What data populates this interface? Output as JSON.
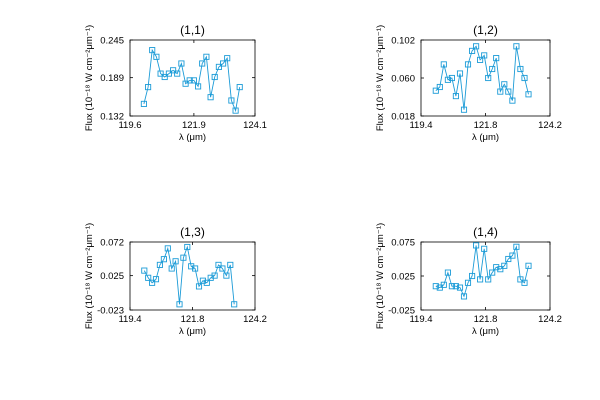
{
  "colors": {
    "series": "#1b9bd7",
    "axis": "#000000",
    "background": "#ffffff"
  },
  "chart_data": [
    {
      "type": "line",
      "title": "(1,1)",
      "xlabel": "λ (μm)",
      "ylabel": "Flux (10⁻¹⁸ W cm⁻²μm⁻¹)",
      "xlim": [
        119.6,
        124.1
      ],
      "ylim": [
        0.132,
        0.245
      ],
      "xticks": [
        "119.6",
        "121.9",
        "124.1"
      ],
      "yticks": [
        "0.132",
        "0.189",
        "0.245"
      ],
      "series": [
        {
          "x": [
            120.1,
            120.25,
            120.4,
            120.55,
            120.7,
            120.85,
            121.0,
            121.15,
            121.3,
            121.45,
            121.6,
            121.75,
            121.9,
            122.05,
            122.2,
            122.35,
            122.5,
            122.65,
            122.8,
            122.95,
            123.1,
            123.25,
            123.4,
            123.55
          ],
          "y": [
            0.15,
            0.175,
            0.23,
            0.22,
            0.195,
            0.19,
            0.195,
            0.2,
            0.195,
            0.21,
            0.18,
            0.185,
            0.185,
            0.176,
            0.21,
            0.22,
            0.16,
            0.19,
            0.205,
            0.21,
            0.218,
            0.155,
            0.14,
            0.175
          ]
        }
      ]
    },
    {
      "type": "line",
      "title": "(1,2)",
      "xlabel": "λ (μm)",
      "ylabel": "Flux (10⁻¹⁸ W cm⁻²μm⁻¹)",
      "xlim": [
        119.4,
        124.2
      ],
      "ylim": [
        0.018,
        0.102
      ],
      "xticks": [
        "119.4",
        "121.8",
        "124.2"
      ],
      "yticks": [
        "0.018",
        "0.060",
        "0.102"
      ],
      "series": [
        {
          "x": [
            119.95,
            120.1,
            120.25,
            120.4,
            120.55,
            120.7,
            120.85,
            121.0,
            121.15,
            121.3,
            121.45,
            121.6,
            121.75,
            121.9,
            122.05,
            122.2,
            122.35,
            122.5,
            122.65,
            122.8,
            122.95,
            123.1,
            123.25,
            123.4
          ],
          "y": [
            0.046,
            0.05,
            0.075,
            0.058,
            0.06,
            0.04,
            0.065,
            0.025,
            0.075,
            0.09,
            0.095,
            0.08,
            0.085,
            0.06,
            0.07,
            0.082,
            0.045,
            0.053,
            0.045,
            0.035,
            0.095,
            0.07,
            0.06,
            0.042
          ]
        }
      ]
    },
    {
      "type": "line",
      "title": "(1,3)",
      "xlabel": "λ (μm)",
      "ylabel": "Flux (10⁻¹⁸ W cm⁻²μm⁻¹)",
      "xlim": [
        119.4,
        124.2
      ],
      "ylim": [
        -0.023,
        0.072
      ],
      "xticks": [
        "119.4",
        "121.8",
        "124.2"
      ],
      "yticks": [
        "-0.023",
        "0.025",
        "0.072"
      ],
      "series": [
        {
          "x": [
            119.95,
            120.1,
            120.25,
            120.4,
            120.55,
            120.7,
            120.85,
            121.0,
            121.15,
            121.3,
            121.45,
            121.6,
            121.75,
            121.9,
            122.05,
            122.2,
            122.35,
            122.5,
            122.65,
            122.8,
            122.95,
            123.1,
            123.25,
            123.4
          ],
          "y": [
            0.032,
            0.022,
            0.015,
            0.02,
            0.04,
            0.048,
            0.063,
            0.035,
            0.045,
            -0.015,
            0.05,
            0.065,
            0.038,
            0.035,
            0.01,
            0.018,
            0.015,
            0.022,
            0.025,
            0.04,
            0.035,
            0.025,
            0.04,
            -0.015
          ]
        }
      ]
    },
    {
      "type": "line",
      "title": "(1,4)",
      "xlabel": "λ (μm)",
      "ylabel": "Flux (10⁻¹⁸ W cm⁻²μm⁻¹)",
      "xlim": [
        119.4,
        124.2
      ],
      "ylim": [
        -0.025,
        0.075
      ],
      "xticks": [
        "119.4",
        "121.8",
        "124.2"
      ],
      "yticks": [
        "-0.025",
        "0.025",
        "0.075"
      ],
      "series": [
        {
          "x": [
            119.95,
            120.1,
            120.25,
            120.4,
            120.55,
            120.7,
            120.85,
            121.0,
            121.15,
            121.3,
            121.45,
            121.6,
            121.75,
            121.9,
            122.05,
            122.2,
            122.35,
            122.5,
            122.65,
            122.8,
            122.95,
            123.1,
            123.25,
            123.4
          ],
          "y": [
            0.01,
            0.008,
            0.012,
            0.03,
            0.01,
            0.01,
            0.008,
            -0.005,
            0.015,
            0.025,
            0.07,
            0.02,
            0.065,
            0.02,
            0.03,
            0.038,
            0.035,
            0.04,
            0.05,
            0.055,
            0.068,
            0.02,
            0.015,
            0.04
          ]
        }
      ]
    }
  ]
}
